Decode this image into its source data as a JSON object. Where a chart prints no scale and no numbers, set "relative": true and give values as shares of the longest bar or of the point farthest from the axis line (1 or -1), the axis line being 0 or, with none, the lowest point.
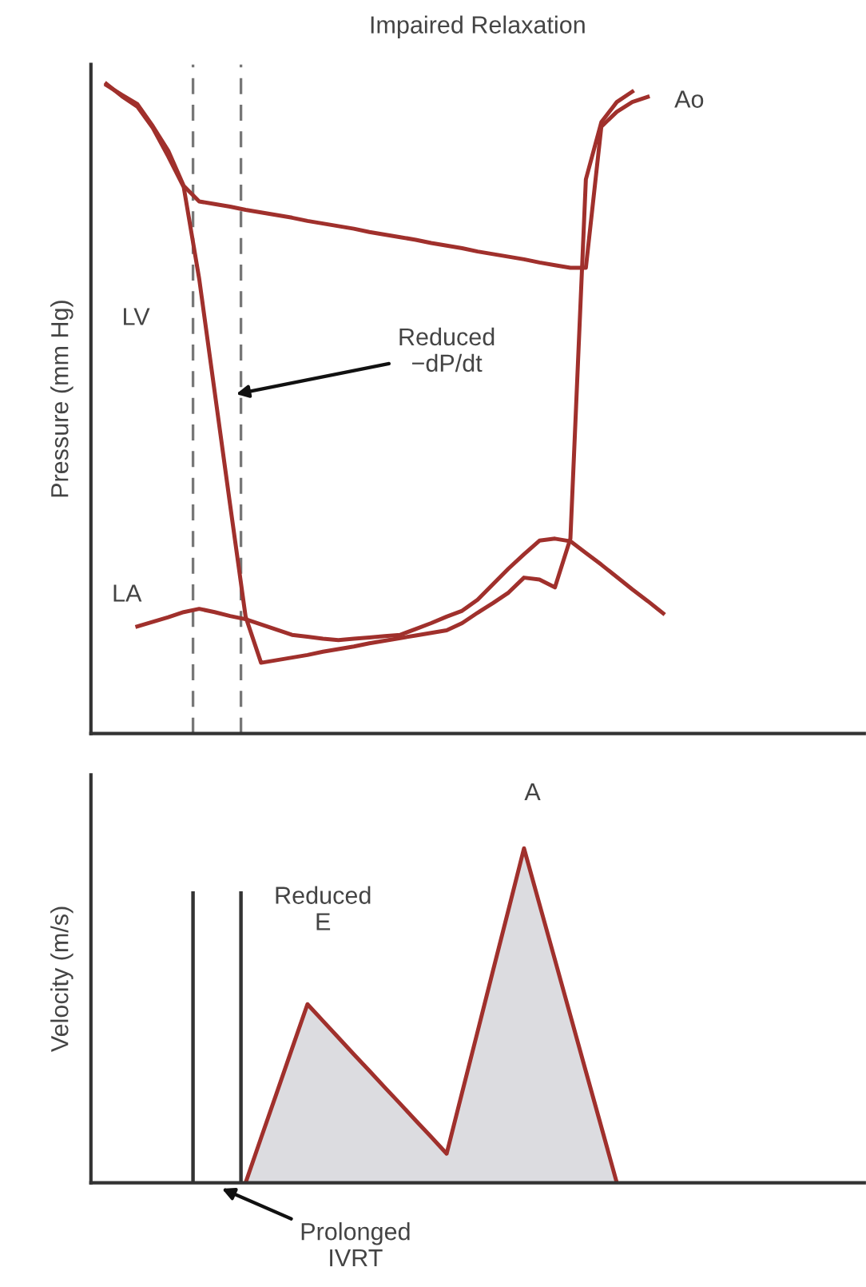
{
  "chart_data": [
    {
      "type": "line",
      "title": "Impaired Relaxation",
      "ylabel": "Pressure (mm Hg)",
      "relative": true,
      "categories": [
        null,
        null,
        null,
        null,
        null,
        null,
        null,
        null,
        null,
        null,
        null,
        null,
        null,
        null,
        null,
        null,
        null,
        null,
        null,
        null,
        null,
        null,
        null,
        null,
        null,
        null,
        null,
        null,
        null,
        null,
        null,
        null,
        null,
        null,
        null,
        null,
        null,
        null,
        null,
        null,
        null,
        null,
        null,
        null,
        null,
        null,
        null,
        null,
        null,
        null,
        null
      ],
      "series": [
        {
          "name": "LV",
          "color": "#a0302c",
          "values": [
            null,
            1.0,
            0.981,
            0.965,
            0.932,
            0.888,
            0.841,
            0.7,
            0.526,
            0.352,
            0.18,
            0.109,
            0.113,
            0.117,
            0.121,
            0.126,
            0.13,
            0.134,
            0.139,
            0.143,
            0.147,
            0.151,
            0.155,
            0.159,
            0.17,
            0.186,
            0.201,
            0.217,
            0.24,
            0.237,
            0.225,
            0.3,
            0.853,
            0.941,
            0.972,
            0.988,
            null,
            null,
            null,
            null,
            null,
            null,
            null,
            null,
            null,
            null,
            null,
            null,
            null,
            null,
            null
          ]
        },
        {
          "name": "Ao",
          "color": "#a0302c",
          "values": [
            null,
            0.998,
            0.983,
            0.969,
            0.935,
            0.897,
            0.843,
            0.819,
            0.815,
            0.811,
            0.806,
            0.802,
            0.798,
            0.794,
            0.789,
            0.785,
            0.781,
            0.777,
            0.772,
            0.768,
            0.764,
            0.76,
            0.755,
            0.751,
            0.747,
            0.742,
            0.738,
            0.734,
            0.73,
            0.725,
            0.721,
            0.717,
            0.717,
            0.934,
            0.957,
            0.972,
            0.98,
            null,
            null,
            null,
            null,
            null,
            null,
            null,
            null,
            null,
            null,
            null,
            null,
            null,
            null
          ]
        },
        {
          "name": "LA",
          "color": "#a0302c",
          "values": [
            null,
            null,
            null,
            0.165,
            0.172,
            0.179,
            0.187,
            0.192,
            0.187,
            0.181,
            0.176,
            0.168,
            0.16,
            0.152,
            0.149,
            0.146,
            0.144,
            0.146,
            0.148,
            0.15,
            0.152,
            0.161,
            0.17,
            0.18,
            0.189,
            0.206,
            0.23,
            0.254,
            0.276,
            0.297,
            0.3,
            0.296,
            0.278,
            0.26,
            0.241,
            0.222,
            0.204,
            0.185,
            null,
            null,
            null,
            null,
            null,
            null,
            null,
            null,
            null,
            null,
            null,
            null,
            null
          ]
        }
      ],
      "annotations": [
        "Reduced\n−dP/dt"
      ]
    },
    {
      "type": "area",
      "ylabel": "Velocity (m/s)",
      "relative": true,
      "categories": [
        null,
        null,
        null,
        null,
        null,
        null,
        null,
        null,
        null,
        null,
        null,
        null,
        null,
        null,
        null,
        null,
        null,
        null,
        null,
        null,
        null,
        null,
        null,
        null,
        null,
        null,
        null,
        null,
        null,
        null,
        null,
        null,
        null,
        null,
        null,
        null,
        null,
        null,
        null,
        null,
        null,
        null,
        null,
        null,
        null,
        null,
        null,
        null,
        null,
        null,
        null
      ],
      "series": [
        {
          "color": "#a0302c",
          "values": [
            null,
            null,
            null,
            null,
            null,
            null,
            null,
            null,
            null,
            null,
            0,
            0.134,
            0.267,
            0.401,
            0.534,
            0.484,
            0.434,
            0.384,
            0.335,
            0.285,
            0.236,
            0.186,
            0.137,
            0.087,
            0.27,
            0.452,
            0.635,
            0.817,
            1.0,
            0.833,
            0.667,
            0.5,
            0.333,
            0.167,
            0,
            null,
            null,
            null,
            null,
            null,
            null,
            null,
            null,
            null,
            null,
            null,
            null,
            null,
            null,
            null,
            null
          ]
        }
      ],
      "annotations": [
        "Reduced\nE",
        "A",
        "Prolonged\nIVRT"
      ]
    }
  ]
}
